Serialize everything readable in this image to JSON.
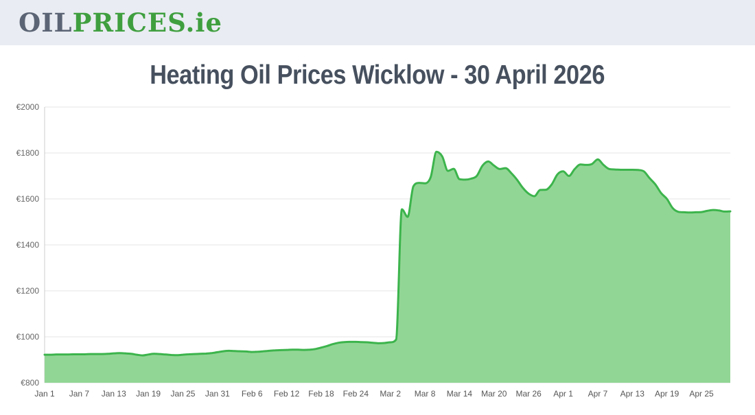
{
  "header": {
    "logo_oil": "OIL",
    "logo_prices": "PRICES",
    "logo_tld": ".ie"
  },
  "main": {
    "title": "Heating Oil Prices Wicklow - 30 April 2026"
  },
  "colors": {
    "header_bg": "#e9ecf2",
    "logo_slate": "#5b6474",
    "logo_green": "#3f9f3f",
    "title_text": "#46505e"
  },
  "chart_data": {
    "type": "area",
    "title": "Heating Oil Prices Wicklow - 30 April 2026",
    "currency": "EUR",
    "x_start": "Jan 1",
    "x_end": "Apr 30",
    "tick_interval_days": 6,
    "x_tick_labels": [
      "Jan 1",
      "Jan 7",
      "Jan 13",
      "Jan 19",
      "Jan 25",
      "Jan 31",
      "Feb 6",
      "Feb 12",
      "Feb 18",
      "Feb 24",
      "Mar 2",
      "Mar 8",
      "Mar 14",
      "Mar 20",
      "Mar 26",
      "Apr 1",
      "Apr 7",
      "Apr 13",
      "Apr 19",
      "Apr 25"
    ],
    "ytick_labels": [
      "€800",
      "€1000",
      "€1200",
      "€1400",
      "€1600",
      "€1800",
      "€2000"
    ],
    "ylim": [
      800,
      2000
    ],
    "grid": "horizontal",
    "legend": "none",
    "series": [
      {
        "name": "price",
        "values": [
          922,
          922,
          923,
          923,
          923,
          924,
          924,
          924,
          925,
          925,
          925,
          926,
          928,
          929,
          928,
          926,
          922,
          919,
          923,
          926,
          925,
          923,
          921,
          920,
          922,
          924,
          925,
          926,
          927,
          929,
          933,
          937,
          939,
          938,
          937,
          936,
          934,
          935,
          937,
          939,
          941,
          942,
          943,
          944,
          944,
          943,
          944,
          947,
          953,
          960,
          968,
          974,
          977,
          978,
          978,
          977,
          976,
          974,
          972,
          973,
          976,
          988,
          1555,
          1522,
          1655,
          1670,
          1668,
          1695,
          1805,
          1785,
          1722,
          1731,
          1686,
          1684,
          1688,
          1700,
          1745,
          1763,
          1745,
          1730,
          1734,
          1712,
          1683,
          1648,
          1623,
          1612,
          1639,
          1640,
          1663,
          1707,
          1720,
          1700,
          1730,
          1750,
          1748,
          1752,
          1772,
          1748,
          1730,
          1728,
          1727,
          1727,
          1727,
          1726,
          1720,
          1690,
          1663,
          1625,
          1600,
          1560,
          1544,
          1542,
          1541,
          1542,
          1543,
          1548,
          1552,
          1550,
          1545,
          1546
        ]
      }
    ],
    "colors": {
      "line": "#3cb44c",
      "fill": "#92d695",
      "grid": "#e6e6e6",
      "axis_line": "#cccccc",
      "ytick_text": "#666666",
      "xtick_text": "#555555"
    }
  }
}
